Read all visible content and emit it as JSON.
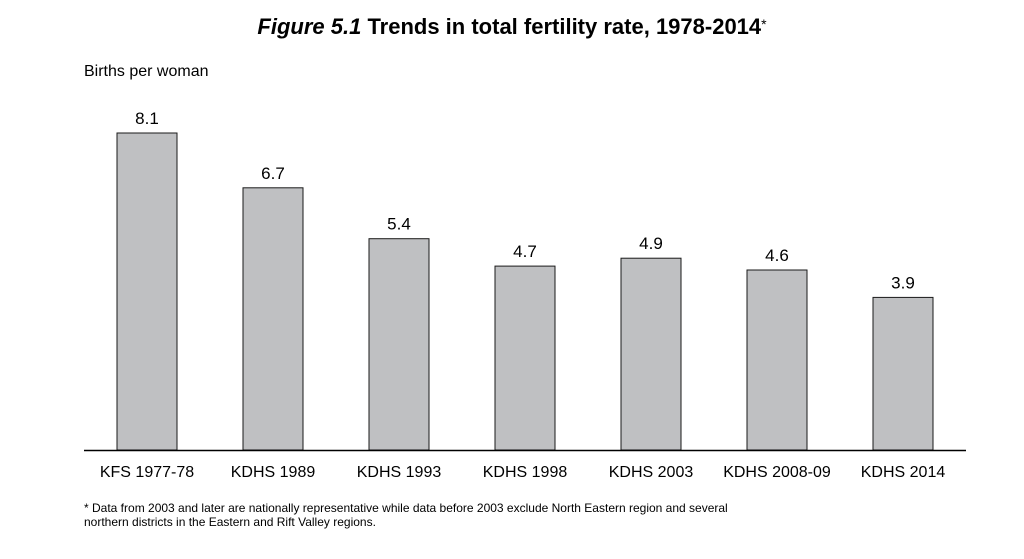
{
  "title": {
    "figure_label": "Figure 5.1",
    "text": "Trends in total fertility rate, 1978-2014",
    "marker": "*"
  },
  "chart_data": {
    "type": "bar",
    "title": "Trends in total fertility rate, 1978-2014",
    "ylabel": "Births per woman",
    "xlabel": "",
    "categories": [
      "KFS 1977-78",
      "KDHS 1989",
      "KDHS 1993",
      "KDHS 1998",
      "KDHS 2003",
      "KDHS 2008-09",
      "KDHS 2014"
    ],
    "values": [
      8.1,
      6.7,
      5.4,
      4.7,
      4.9,
      4.6,
      3.9
    ],
    "value_labels": [
      "8.1",
      "6.7",
      "5.4",
      "4.7",
      "4.9",
      "4.6",
      "3.9"
    ],
    "ylim": [
      0,
      8.1
    ],
    "grid": false,
    "bar_color": "#bfc0c2",
    "bar_edge_color": "#1a1a1a"
  },
  "footnote": "* Data from 2003 and later are nationally representative while data before 2003 exclude North Eastern region and several northern districts in the Eastern and Rift Valley regions."
}
